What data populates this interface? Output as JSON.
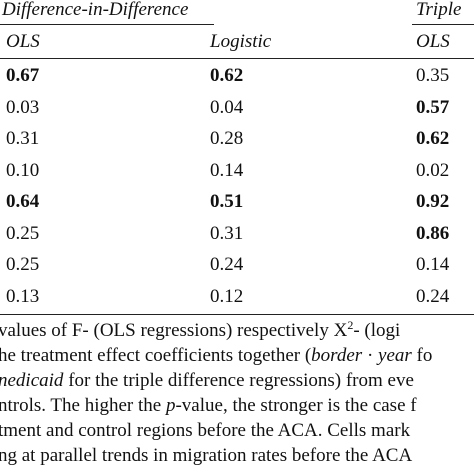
{
  "table": {
    "group_headers": {
      "did": "Difference-in-Difference",
      "ddd": "Triple"
    },
    "column_headers": [
      "OLS",
      "Logistic",
      "OLS"
    ],
    "rows": [
      {
        "cells": [
          {
            "value": "0.67",
            "bold": true
          },
          {
            "value": "0.62",
            "bold": true
          },
          {
            "value": "0.35",
            "bold": false
          }
        ]
      },
      {
        "cells": [
          {
            "value": "0.03",
            "bold": false
          },
          {
            "value": "0.04",
            "bold": false
          },
          {
            "value": "0.57",
            "bold": true
          }
        ]
      },
      {
        "cells": [
          {
            "value": "0.31",
            "bold": false
          },
          {
            "value": "0.28",
            "bold": false
          },
          {
            "value": "0.62",
            "bold": true
          }
        ]
      },
      {
        "cells": [
          {
            "value": "0.10",
            "bold": false
          },
          {
            "value": "0.14",
            "bold": false
          },
          {
            "value": "0.02",
            "bold": false
          }
        ]
      },
      {
        "cells": [
          {
            "value": "0.64",
            "bold": true
          },
          {
            "value": "0.51",
            "bold": true
          },
          {
            "value": "0.92",
            "bold": true
          }
        ]
      },
      {
        "cells": [
          {
            "value": "0.25",
            "bold": false
          },
          {
            "value": "0.31",
            "bold": false
          },
          {
            "value": "0.86",
            "bold": true
          }
        ]
      },
      {
        "cells": [
          {
            "value": "0.25",
            "bold": false
          },
          {
            "value": "0.24",
            "bold": false
          },
          {
            "value": "0.14",
            "bold": false
          }
        ]
      },
      {
        "cells": [
          {
            "value": "0.13",
            "bold": false
          },
          {
            "value": "0.12",
            "bold": false
          },
          {
            "value": "0.24",
            "bold": false
          }
        ]
      }
    ]
  },
  "note": {
    "line1": {
      "a": "values of F- (OLS regressions) respectively X",
      "sup": "2",
      "b": "- (logi"
    },
    "line2": {
      "a": "he treatment effect coefficients together (",
      "it1": "border",
      "b": " · ",
      "it2": "year",
      "c": " fo"
    },
    "line3": {
      "it1": "nedicaid",
      "a": " for the triple difference regressions) from eve"
    },
    "line4": {
      "a": "ntrols. The higher the ",
      "it1": "p",
      "b": "-value, the stronger is the case f"
    },
    "line5": {
      "a": "tment and control regions before the ACA. Cells mark"
    },
    "line6": {
      "a": "ng at parallel trends in migration rates before the ACA"
    }
  }
}
